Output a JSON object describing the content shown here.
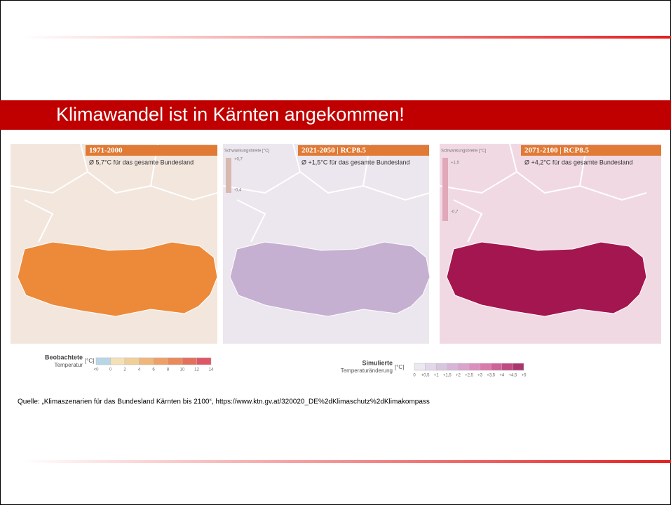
{
  "title": "Klimawandel ist in Kärnten angekommen!",
  "maps": [
    {
      "header": "1971-2000",
      "mean": "Ø 5,7°C für das gesamte Bundesland"
    },
    {
      "header": "2021-2050 | RCP8.5",
      "range_label": "Schwankungsbreite [°C]",
      "range_max": "+0,7",
      "range_min": "-0,4",
      "mean": "Ø +1,5°C für das gesamte Bundesland"
    },
    {
      "header": "2071-2100 | RCP8.5",
      "range_label": "Schwankungsbreite [°C]",
      "range_max": "+1,5",
      "range_min": "-0,7",
      "mean": "Ø +4,2°C für das gesamte Bundesland"
    }
  ],
  "legends": [
    {
      "title": "Beobachtete",
      "subtitle": "Temperatur",
      "unit": "[°C]",
      "ticks": [
        "<0",
        "0",
        "2",
        "4",
        "6",
        "8",
        "10",
        "12",
        "14"
      ]
    },
    {
      "title": "Simulierte",
      "subtitle": "Temperaturänderung",
      "unit": "[°C]",
      "ticks": [
        "0",
        "+0,5",
        "+1",
        "+1,5",
        "+2",
        "+2,5",
        "+3",
        "+3,5",
        "+4",
        "+4,5",
        "+5"
      ]
    }
  ],
  "source": "Quelle: „Klimaszenarien für das Bundesland Kärnten bis 2100“, https://www.ktn.gv.at/320020_DE%2dKlimaschutz%2dKlimakompass"
}
